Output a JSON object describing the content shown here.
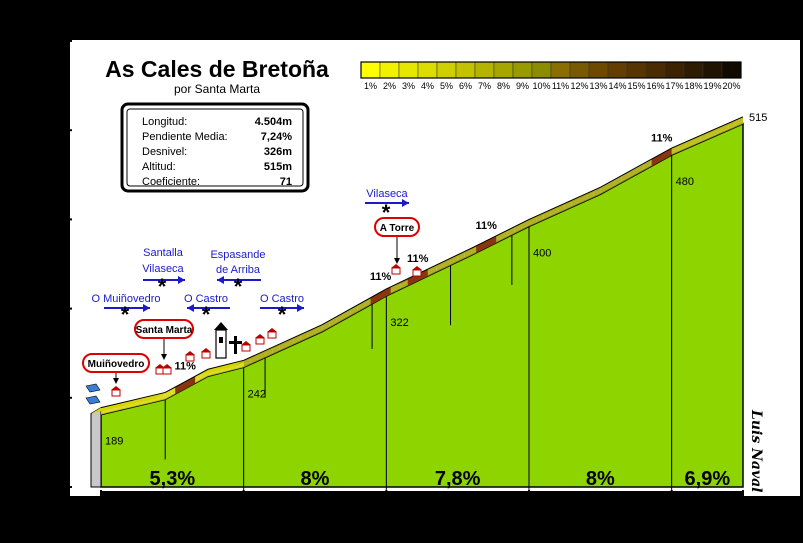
{
  "chart_data": {
    "type": "area",
    "title": "As Cales de Bretoña",
    "subtitle": "por Santa Marta",
    "author": "Luis Naval",
    "stats": [
      {
        "label": "Longitud:",
        "value": "4.504m"
      },
      {
        "label": "Pendiente Media:",
        "value": "7,24%"
      },
      {
        "label": "Desnivel:",
        "value": "326m"
      },
      {
        "label": "Altitud:",
        "value": "515m"
      },
      {
        "label": "Coeficiente:",
        "value": "71"
      }
    ],
    "ylim": [
      100,
      600
    ],
    "yticks": [
      "100",
      "200",
      "300",
      "400",
      "500",
      "600"
    ],
    "xlim": [
      0,
      4.5
    ],
    "xticks": [
      {
        "v": 0,
        "label": "0"
      },
      {
        "v": 1,
        "label": "1"
      },
      {
        "v": 2,
        "label": "2"
      },
      {
        "v": 3,
        "label": "3"
      },
      {
        "v": 4,
        "label": "4"
      },
      {
        "v": 4.5,
        "label": "4,50"
      }
    ],
    "profile": [
      {
        "x": 0,
        "y": 189
      },
      {
        "x": 0.45,
        "y": 206
      },
      {
        "x": 0.75,
        "y": 232
      },
      {
        "x": 1,
        "y": 242
      },
      {
        "x": 1.55,
        "y": 282
      },
      {
        "x": 2,
        "y": 322
      },
      {
        "x": 2.6,
        "y": 368
      },
      {
        "x": 3,
        "y": 400
      },
      {
        "x": 3.5,
        "y": 436
      },
      {
        "x": 4,
        "y": 480
      },
      {
        "x": 4.5,
        "y": 515
      }
    ],
    "elevation_labels": [
      {
        "x": 0,
        "y": 189,
        "label": "189"
      },
      {
        "x": 1,
        "y": 242,
        "label": "242"
      },
      {
        "x": 2,
        "y": 322,
        "label": "322"
      },
      {
        "x": 3,
        "y": 400,
        "label": "400"
      },
      {
        "x": 4,
        "y": 480,
        "label": "480"
      },
      {
        "x": 4.5,
        "y": 515,
        "label": "515"
      }
    ],
    "segments": [
      {
        "from": 0,
        "to": 1,
        "grade": "5,3%"
      },
      {
        "from": 1,
        "to": 2,
        "grade": "8%"
      },
      {
        "from": 2,
        "to": 3,
        "grade": "7,8%"
      },
      {
        "from": 3,
        "to": 4,
        "grade": "8%"
      },
      {
        "from": 4,
        "to": 4.5,
        "grade": "6,9%"
      }
    ],
    "peak_grades": [
      {
        "x": 0.59,
        "label": "11%"
      },
      {
        "x": 1.96,
        "label": "11%"
      },
      {
        "x": 2.22,
        "label": "11%"
      },
      {
        "x": 2.7,
        "label": "11%"
      },
      {
        "x": 3.93,
        "label": "11%"
      }
    ],
    "places": [
      {
        "x": 0.1,
        "label": "Muiñovedro"
      },
      {
        "x": 0.42,
        "label": "Santa Marta"
      },
      {
        "x": 1.95,
        "label": "A Torre"
      }
    ],
    "junctions": [
      {
        "label": "O Muiñovedro",
        "dir": "right"
      },
      {
        "label": "Santalla Vilaseca",
        "dir": "right"
      },
      {
        "label": "O Castro",
        "dir": "left"
      },
      {
        "label": "Espasande de Arriba",
        "dir": "left"
      },
      {
        "label": "O Castro",
        "dir": "right"
      },
      {
        "label": "Vilaseca",
        "dir": "right"
      }
    ],
    "legend": {
      "labels": [
        "1%",
        "2%",
        "3%",
        "4%",
        "5%",
        "6%",
        "7%",
        "8%",
        "9%",
        "10%",
        "11%",
        "12%",
        "13%",
        "14%",
        "15%",
        "16%",
        "17%",
        "18%",
        "19%",
        "20%"
      ],
      "colors": [
        "#ffff00",
        "#f2f200",
        "#e6e600",
        "#dcdc00",
        "#cfcf00",
        "#c2c200",
        "#b4b400",
        "#a6a600",
        "#999900",
        "#8c8c00",
        "#8a6e00",
        "#7a5a00",
        "#6e4a00",
        "#633e00",
        "#573400",
        "#4a2c00",
        "#3d2400",
        "#2e1c00",
        "#201400",
        "#100a00"
      ]
    },
    "grade_colors": {
      "5,3%": "#d6d600",
      "8%": "#a3a300",
      "7,8%": "#a3a300",
      "6,9%": "#b4b400",
      "11%": "#b04a1a"
    },
    "fill_color": "#8ed400"
  }
}
